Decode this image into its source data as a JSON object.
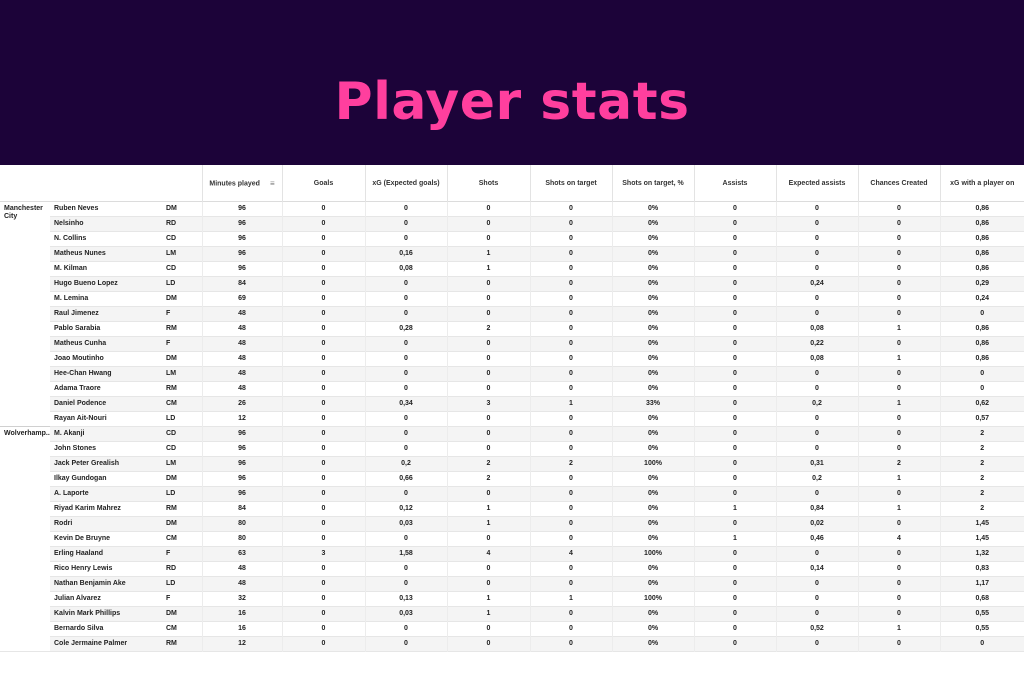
{
  "title": "Player stats",
  "columns": [
    "Minutes played",
    "Goals",
    "xG (Expected goals)",
    "Shots",
    "Shots on target",
    "Shots on target, %",
    "Assists",
    "Expected assists",
    "Chances Created",
    "xG with a player on"
  ],
  "sort_icon": "sort-lines-icon",
  "teams": [
    {
      "name": "Manchester City",
      "players": [
        {
          "name": "Ruben Neves",
          "pos": "DM",
          "stats": [
            "96",
            "0",
            "0",
            "0",
            "0",
            "0%",
            "0",
            "0",
            "0",
            "0,86"
          ]
        },
        {
          "name": "Nelsinho",
          "pos": "RD",
          "stats": [
            "96",
            "0",
            "0",
            "0",
            "0",
            "0%",
            "0",
            "0",
            "0",
            "0,86"
          ]
        },
        {
          "name": "N. Collins",
          "pos": "CD",
          "stats": [
            "96",
            "0",
            "0",
            "0",
            "0",
            "0%",
            "0",
            "0",
            "0",
            "0,86"
          ]
        },
        {
          "name": "Matheus Nunes",
          "pos": "LM",
          "stats": [
            "96",
            "0",
            "0,16",
            "1",
            "0",
            "0%",
            "0",
            "0",
            "0",
            "0,86"
          ]
        },
        {
          "name": "M. Kilman",
          "pos": "CD",
          "stats": [
            "96",
            "0",
            "0,08",
            "1",
            "0",
            "0%",
            "0",
            "0",
            "0",
            "0,86"
          ]
        },
        {
          "name": "Hugo Bueno Lopez",
          "pos": "LD",
          "stats": [
            "84",
            "0",
            "0",
            "0",
            "0",
            "0%",
            "0",
            "0,24",
            "0",
            "0,29"
          ]
        },
        {
          "name": "M. Lemina",
          "pos": "DM",
          "stats": [
            "69",
            "0",
            "0",
            "0",
            "0",
            "0%",
            "0",
            "0",
            "0",
            "0,24"
          ]
        },
        {
          "name": "Raul Jimenez",
          "pos": "F",
          "stats": [
            "48",
            "0",
            "0",
            "0",
            "0",
            "0%",
            "0",
            "0",
            "0",
            "0"
          ]
        },
        {
          "name": "Pablo Sarabia",
          "pos": "RM",
          "stats": [
            "48",
            "0",
            "0,28",
            "2",
            "0",
            "0%",
            "0",
            "0,08",
            "1",
            "0,86"
          ]
        },
        {
          "name": "Matheus Cunha",
          "pos": "F",
          "stats": [
            "48",
            "0",
            "0",
            "0",
            "0",
            "0%",
            "0",
            "0,22",
            "0",
            "0,86"
          ]
        },
        {
          "name": "Joao Moutinho",
          "pos": "DM",
          "stats": [
            "48",
            "0",
            "0",
            "0",
            "0",
            "0%",
            "0",
            "0,08",
            "1",
            "0,86"
          ]
        },
        {
          "name": "Hee-Chan Hwang",
          "pos": "LM",
          "stats": [
            "48",
            "0",
            "0",
            "0",
            "0",
            "0%",
            "0",
            "0",
            "0",
            "0"
          ]
        },
        {
          "name": "Adama Traore",
          "pos": "RM",
          "stats": [
            "48",
            "0",
            "0",
            "0",
            "0",
            "0%",
            "0",
            "0",
            "0",
            "0"
          ]
        },
        {
          "name": "Daniel Podence",
          "pos": "CM",
          "stats": [
            "26",
            "0",
            "0,34",
            "3",
            "1",
            "33%",
            "0",
            "0,2",
            "1",
            "0,62"
          ]
        },
        {
          "name": "Rayan Ait-Nouri",
          "pos": "LD",
          "stats": [
            "12",
            "0",
            "0",
            "0",
            "0",
            "0%",
            "0",
            "0",
            "0",
            "0,57"
          ]
        }
      ]
    },
    {
      "name": "Wolverhamp...",
      "players": [
        {
          "name": "M. Akanji",
          "pos": "CD",
          "stats": [
            "96",
            "0",
            "0",
            "0",
            "0",
            "0%",
            "0",
            "0",
            "0",
            "2"
          ]
        },
        {
          "name": "John Stones",
          "pos": "CD",
          "stats": [
            "96",
            "0",
            "0",
            "0",
            "0",
            "0%",
            "0",
            "0",
            "0",
            "2"
          ]
        },
        {
          "name": "Jack Peter Grealish",
          "pos": "LM",
          "stats": [
            "96",
            "0",
            "0,2",
            "2",
            "2",
            "100%",
            "0",
            "0,31",
            "2",
            "2"
          ]
        },
        {
          "name": "Ilkay Gundogan",
          "pos": "DM",
          "stats": [
            "96",
            "0",
            "0,66",
            "2",
            "0",
            "0%",
            "0",
            "0,2",
            "1",
            "2"
          ]
        },
        {
          "name": "A. Laporte",
          "pos": "LD",
          "stats": [
            "96",
            "0",
            "0",
            "0",
            "0",
            "0%",
            "0",
            "0",
            "0",
            "2"
          ]
        },
        {
          "name": "Riyad Karim Mahrez",
          "pos": "RM",
          "stats": [
            "84",
            "0",
            "0,12",
            "1",
            "0",
            "0%",
            "1",
            "0,84",
            "1",
            "2"
          ]
        },
        {
          "name": "Rodri",
          "pos": "DM",
          "stats": [
            "80",
            "0",
            "0,03",
            "1",
            "0",
            "0%",
            "0",
            "0,02",
            "0",
            "1,45"
          ]
        },
        {
          "name": "Kevin De Bruyne",
          "pos": "CM",
          "stats": [
            "80",
            "0",
            "0",
            "0",
            "0",
            "0%",
            "1",
            "0,46",
            "4",
            "1,45"
          ]
        },
        {
          "name": "Erling Haaland",
          "pos": "F",
          "stats": [
            "63",
            "3",
            "1,58",
            "4",
            "4",
            "100%",
            "0",
            "0",
            "0",
            "1,32"
          ]
        },
        {
          "name": "Rico Henry Lewis",
          "pos": "RD",
          "stats": [
            "48",
            "0",
            "0",
            "0",
            "0",
            "0%",
            "0",
            "0,14",
            "0",
            "0,83"
          ]
        },
        {
          "name": "Nathan Benjamin Ake",
          "pos": "LD",
          "stats": [
            "48",
            "0",
            "0",
            "0",
            "0",
            "0%",
            "0",
            "0",
            "0",
            "1,17"
          ]
        },
        {
          "name": "Julian Alvarez",
          "pos": "F",
          "stats": [
            "32",
            "0",
            "0,13",
            "1",
            "1",
            "100%",
            "0",
            "0",
            "0",
            "0,68"
          ]
        },
        {
          "name": "Kalvin Mark Phillips",
          "pos": "DM",
          "stats": [
            "16",
            "0",
            "0,03",
            "1",
            "0",
            "0%",
            "0",
            "0",
            "0",
            "0,55"
          ]
        },
        {
          "name": "Bernardo Silva",
          "pos": "CM",
          "stats": [
            "16",
            "0",
            "0",
            "0",
            "0",
            "0%",
            "0",
            "0,52",
            "1",
            "0,55"
          ]
        },
        {
          "name": "Cole Jermaine Palmer",
          "pos": "RM",
          "stats": [
            "12",
            "0",
            "0",
            "0",
            "0",
            "0%",
            "0",
            "0",
            "0",
            "0"
          ]
        }
      ]
    }
  ]
}
